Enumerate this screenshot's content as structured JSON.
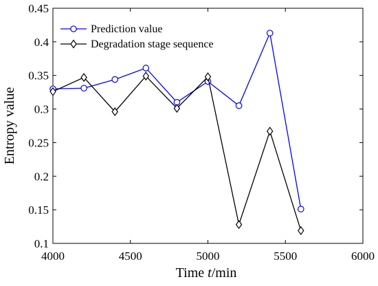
{
  "chart_data": {
    "type": "line",
    "xlabel_parts": [
      "Time ",
      "t",
      "/min"
    ],
    "ylabel": "Entropy value",
    "xlim": [
      4000,
      6000
    ],
    "ylim": [
      0.1,
      0.45
    ],
    "xticks": [
      4000,
      4500,
      5000,
      5500,
      6000
    ],
    "xtick_labels": [
      "4000",
      "4500",
      "5000",
      "5500",
      "6000"
    ],
    "yticks": [
      0.1,
      0.15,
      0.2,
      0.25,
      0.3,
      0.35,
      0.4,
      0.45
    ],
    "ytick_labels": [
      "0.1",
      "0.15",
      "0.2",
      "0.25",
      "0.3",
      "0.35",
      "0.4",
      "0.45"
    ],
    "grid": false,
    "legend_position": "top-left",
    "series": [
      {
        "name": "Prediction value",
        "color": "#0000ff",
        "marker": "circle",
        "x": [
          4000,
          4200,
          4400,
          4600,
          4800,
          5000,
          5200,
          5400,
          5600
        ],
        "y": [
          0.33,
          0.331,
          0.344,
          0.361,
          0.31,
          0.341,
          0.305,
          0.413,
          0.151
        ]
      },
      {
        "name": "Degradation stage sequence",
        "color": "#000000",
        "marker": "diamond",
        "x": [
          4000,
          4200,
          4400,
          4600,
          4800,
          5000,
          5200,
          5400,
          5600
        ],
        "y": [
          0.326,
          0.347,
          0.296,
          0.349,
          0.301,
          0.348,
          0.128,
          0.267,
          0.119
        ]
      }
    ]
  }
}
